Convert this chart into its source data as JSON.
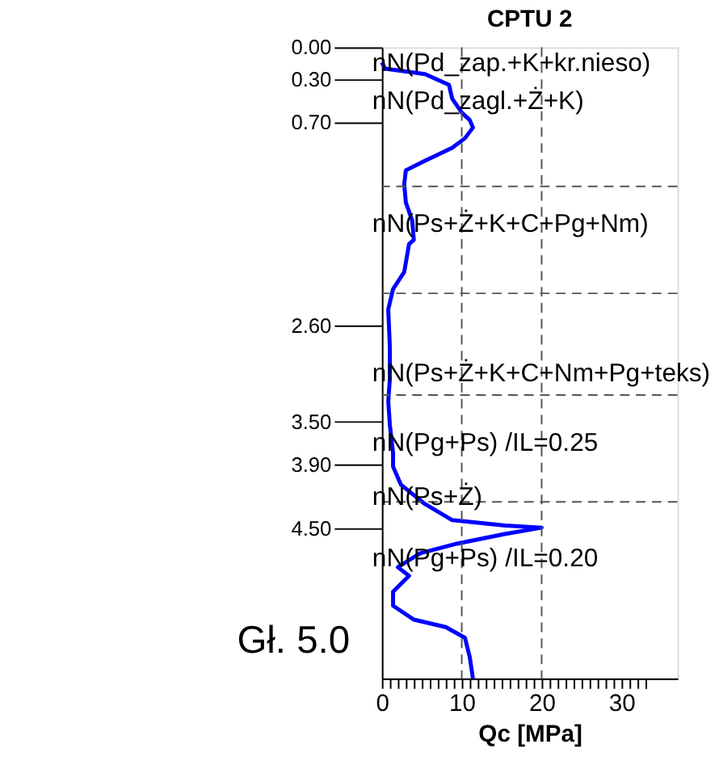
{
  "chart_data": {
    "type": "line",
    "title": "CPTU 2",
    "xlabel": "Qc [MPa]",
    "series": [
      {
        "color": "#0000ff",
        "x": [
          0,
          0.4,
          5.4,
          8.4,
          8.8,
          10,
          11,
          11.4,
          10.4,
          8.8,
          5.4,
          3,
          2.8,
          3,
          3.8,
          4,
          3.4,
          2.8,
          1.4,
          0.8,
          1,
          1,
          0.8,
          1,
          1.4,
          1.4,
          2.4,
          5.4,
          8.8,
          15.4,
          20,
          15.4,
          9.4,
          4.8,
          2,
          3.4,
          1.4,
          1.4,
          4,
          8,
          10.4,
          11,
          11.4
        ],
        "values": [
          0.14,
          0.2,
          0.25,
          0.35,
          0.48,
          0.61,
          0.68,
          0.75,
          0.85,
          0.94,
          1.06,
          1.15,
          1.28,
          1.45,
          1.62,
          1.8,
          1.84,
          2.1,
          2.26,
          2.45,
          2.8,
          3.1,
          3.31,
          3.53,
          3.79,
          3.92,
          4.09,
          4.27,
          4.42,
          4.47,
          4.49,
          4.55,
          4.64,
          4.73,
          4.86,
          4.94,
          5.09,
          5.22,
          5.35,
          5.42,
          5.52,
          5.7,
          5.9
        ]
      }
    ],
    "xlim": [
      0,
      37
    ],
    "xticks": [
      0,
      {
        "value": 1,
        "label": null
      },
      {
        "value": 2,
        "label": null
      },
      {
        "value": 3,
        "label": null
      },
      {
        "value": 4,
        "label": null
      },
      {
        "value": 5,
        "label": null
      },
      {
        "value": 6,
        "label": null
      },
      {
        "value": 7,
        "label": null
      },
      {
        "value": 8,
        "label": null
      },
      {
        "value": 9,
        "label": null
      },
      10,
      {
        "value": 11,
        "label": null
      },
      {
        "value": 12,
        "label": null
      },
      {
        "value": 13,
        "label": null
      },
      {
        "value": 14,
        "label": null
      },
      {
        "value": 15,
        "label": null
      },
      {
        "value": 16,
        "label": null
      },
      {
        "value": 17,
        "label": null
      },
      {
        "value": 18,
        "label": null
      },
      {
        "value": 19,
        "label": null
      },
      20,
      {
        "value": 21,
        "label": null
      },
      {
        "value": 22,
        "label": null
      },
      {
        "value": 23,
        "label": null
      },
      {
        "value": 24,
        "label": null
      },
      {
        "value": 25,
        "label": null
      },
      {
        "value": 26,
        "label": null
      },
      {
        "value": 27,
        "label": null
      },
      {
        "value": 28,
        "label": null
      },
      {
        "value": 29,
        "label": null
      },
      30,
      {
        "value": 31,
        "label": null
      },
      {
        "value": 32,
        "label": null
      },
      {
        "value": 33,
        "label": null
      }
    ],
    "ylim": [
      5.9,
      0
    ],
    "yticks": [
      {
        "value": 0,
        "label": "0.00"
      },
      {
        "value": 0.3,
        "label": "0.30"
      },
      {
        "value": 0.7,
        "label": "0.70"
      },
      {
        "value": 2.6,
        "label": "2.60"
      },
      {
        "value": 3.5,
        "label": "3.50"
      },
      {
        "value": 3.9,
        "label": "3.90"
      },
      {
        "value": 4.5,
        "label": "4.50"
      }
    ],
    "grid": false,
    "marker": "none",
    "line_style": "solid",
    "ref_lines": [
      {
        "axis": "y",
        "value": 1.3,
        "color": "#555555",
        "line_style": "dashed"
      },
      {
        "axis": "y",
        "value": 2.3,
        "color": "#555555",
        "line_style": "dashed"
      },
      {
        "axis": "y",
        "value": 3.25,
        "color": "#555555",
        "line_style": "dashed"
      },
      {
        "axis": "y",
        "value": 4.25,
        "color": "#555555",
        "line_style": "dashed"
      },
      {
        "axis": "x",
        "value": 10,
        "color": "#555555",
        "line_style": "dashed"
      },
      {
        "axis": "x",
        "value": 20,
        "color": "#555555",
        "line_style": "dashed"
      }
    ],
    "annotations": [
      "nN(Pd_zap.+K+kr.nieso)",
      "nN(Pd_zagl.+Ż+K)",
      "nN(Ps+Ż+K+C+Pg+Nm)",
      "nN(Ps+Ż+K+C+Nm+Pg+teks)",
      "nN(Pg+Ps) /IL=0.25",
      "nN(Ps+Ż)",
      "nN(Pg+Ps) /IL=0.20",
      "Gł. 5.0"
    ]
  }
}
